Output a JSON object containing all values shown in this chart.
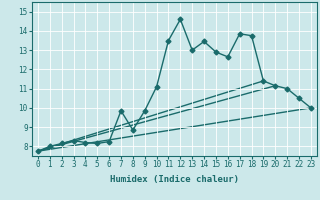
{
  "xlabel": "Humidex (Indice chaleur)",
  "xlim": [
    -0.5,
    23.5
  ],
  "ylim": [
    7.5,
    15.5
  ],
  "xticks": [
    0,
    1,
    2,
    3,
    4,
    5,
    6,
    7,
    8,
    9,
    10,
    11,
    12,
    13,
    14,
    15,
    16,
    17,
    18,
    19,
    20,
    21,
    22,
    23
  ],
  "yticks": [
    8,
    9,
    10,
    11,
    12,
    13,
    14,
    15
  ],
  "bg_color": "#cce8ea",
  "line_color": "#1a6b6b",
  "grid_color": "#ffffff",
  "line1_x": [
    0,
    1,
    2,
    3,
    4,
    5,
    6,
    7,
    8,
    9,
    10,
    11,
    12,
    13,
    14,
    15,
    16,
    17,
    18,
    19,
    20,
    21,
    22,
    23
  ],
  "line1_y": [
    7.75,
    8.0,
    8.15,
    8.3,
    8.2,
    8.15,
    8.25,
    9.85,
    8.85,
    9.85,
    11.1,
    13.5,
    14.6,
    13.0,
    13.45,
    12.9,
    12.65,
    13.85,
    13.75,
    11.4,
    11.15,
    11.0,
    10.5,
    10.0
  ],
  "line2_x": [
    0,
    23
  ],
  "line2_y": [
    7.75,
    10.0
  ],
  "line3_x": [
    0,
    20
  ],
  "line3_y": [
    7.75,
    11.15
  ],
  "line4_x": [
    0,
    19
  ],
  "line4_y": [
    7.75,
    11.4
  ],
  "marker": "D",
  "markersize": 2.5,
  "linewidth": 1.0
}
